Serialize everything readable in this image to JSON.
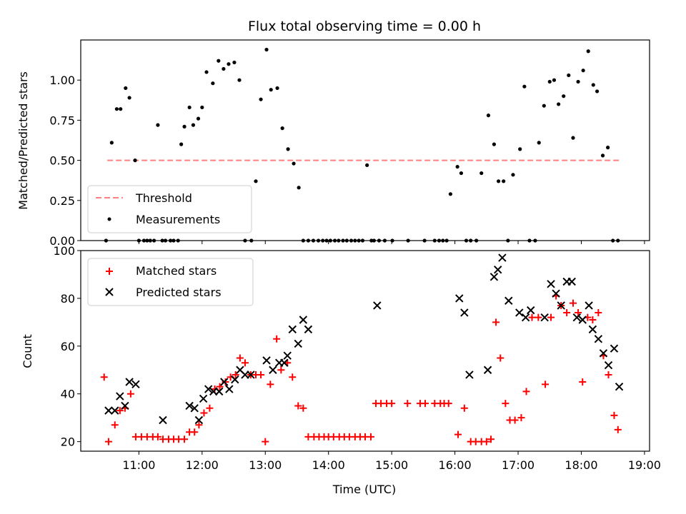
{
  "chart_data": [
    {
      "type": "scatter",
      "title": "Flux total observing time = 0.00 h",
      "xlabel": "",
      "ylabel": "Matched/Predicted stars",
      "xlim": [
        10.08,
        19.08
      ],
      "ylim": [
        0.0,
        1.25
      ],
      "y_ticks": [
        0.0,
        0.25,
        0.5,
        0.75,
        1.0
      ],
      "y_tick_labels": [
        "0.00",
        "0.25",
        "0.50",
        "0.75",
        "1.00"
      ],
      "x_ticks": [
        11,
        12,
        13,
        14,
        15,
        16,
        17,
        18,
        19
      ],
      "x_tick_labels": [],
      "threshold": {
        "y": 0.5,
        "x": [
          10.5,
          18.6
        ],
        "color": "#ff8080"
      },
      "legend": {
        "placement": "lower-left",
        "entries": [
          "Threshold",
          "Measurements"
        ]
      },
      "series": [
        {
          "name": "Measurements",
          "color": "#000000",
          "marker": "dot",
          "x": [
            10.48,
            10.57,
            10.65,
            10.71,
            10.79,
            10.85,
            10.94,
            11.0,
            11.08,
            11.13,
            11.18,
            11.24,
            11.3,
            11.37,
            11.42,
            11.5,
            11.55,
            11.62,
            11.67,
            11.72,
            11.8,
            11.86,
            11.94,
            12.0,
            12.07,
            12.17,
            12.26,
            12.34,
            12.42,
            12.51,
            12.59,
            12.68,
            12.78,
            12.85,
            12.93,
            13.02,
            13.09,
            13.19,
            13.27,
            13.36,
            13.45,
            13.53,
            13.6,
            13.68,
            13.76,
            13.84,
            13.91,
            13.97,
            14.03,
            14.1,
            14.16,
            14.23,
            14.29,
            14.36,
            14.42,
            14.48,
            14.54,
            14.61,
            14.68,
            14.72,
            14.8,
            14.89,
            15.01,
            15.26,
            15.52,
            15.68,
            15.75,
            15.81,
            15.87,
            15.93,
            16.04,
            16.1,
            16.18,
            16.25,
            16.34,
            16.42,
            16.53,
            16.62,
            16.69,
            16.77,
            16.84,
            16.92,
            17.03,
            17.1,
            17.18,
            17.27,
            17.33,
            17.41,
            17.5,
            17.57,
            17.64,
            17.72,
            17.8,
            17.87,
            17.95,
            18.03,
            18.11,
            18.19,
            18.25,
            18.34,
            18.42,
            18.5,
            18.58
          ],
          "y": [
            0.0,
            0.61,
            0.82,
            0.82,
            0.95,
            0.89,
            0.5,
            0.0,
            0.0,
            0.0,
            0.0,
            0.0,
            0.72,
            0.0,
            0.0,
            0.0,
            0.0,
            0.0,
            0.6,
            0.71,
            0.83,
            0.72,
            0.76,
            0.83,
            1.05,
            0.98,
            1.12,
            1.07,
            1.1,
            1.11,
            1.0,
            0.0,
            0.0,
            0.37,
            0.88,
            1.19,
            0.94,
            0.95,
            0.7,
            0.57,
            0.48,
            0.33,
            0.0,
            0.0,
            0.0,
            0.0,
            0.0,
            0.0,
            0.0,
            0.0,
            0.0,
            0.0,
            0.0,
            0.0,
            0.0,
            0.0,
            0.0,
            0.47,
            0.0,
            0.0,
            0.0,
            0.0,
            0.0,
            0.0,
            0.0,
            0.0,
            0.0,
            0.0,
            0.0,
            0.29,
            0.46,
            0.42,
            0.0,
            0.0,
            0.0,
            0.42,
            0.78,
            0.6,
            0.37,
            0.37,
            0.0,
            0.41,
            0.57,
            0.96,
            0.0,
            0.0,
            0.61,
            0.84,
            0.99,
            1.0,
            0.85,
            0.9,
            1.03,
            0.64,
            0.99,
            1.06,
            1.18,
            0.97,
            0.93,
            0.53,
            0.58,
            0.0,
            0.0
          ]
        }
      ]
    },
    {
      "type": "scatter",
      "title": "",
      "xlabel": "Time (UTC)",
      "ylabel": "Count",
      "xlim": [
        10.08,
        19.08
      ],
      "ylim": [
        16,
        100
      ],
      "y_ticks": [
        20,
        40,
        60,
        80,
        100
      ],
      "y_tick_labels": [
        "20",
        "40",
        "60",
        "80",
        "100"
      ],
      "x_ticks": [
        11,
        12,
        13,
        14,
        15,
        16,
        17,
        18,
        19
      ],
      "x_tick_labels": [
        "11:00",
        "12:00",
        "13:00",
        "14:00",
        "15:00",
        "16:00",
        "17:00",
        "18:00",
        "19:00"
      ],
      "legend": {
        "placement": "upper-left",
        "entries": [
          "Matched stars",
          "Predicted stars"
        ]
      },
      "series": [
        {
          "name": "Matched stars",
          "color": "#ff0000",
          "marker": "plus",
          "x": [
            10.45,
            10.52,
            10.62,
            10.7,
            10.78,
            10.87,
            10.95,
            11.04,
            11.13,
            11.22,
            11.3,
            11.38,
            11.47,
            11.55,
            11.63,
            11.72,
            11.8,
            11.88,
            11.95,
            12.03,
            12.12,
            12.2,
            12.28,
            12.37,
            12.45,
            12.53,
            12.6,
            12.68,
            12.77,
            12.85,
            12.93,
            13.0,
            13.08,
            13.18,
            13.25,
            13.35,
            13.43,
            13.52,
            13.6,
            13.68,
            13.77,
            13.85,
            13.93,
            14.0,
            14.08,
            14.17,
            14.25,
            14.33,
            14.42,
            14.5,
            14.58,
            14.67,
            14.75,
            14.83,
            14.92,
            15.0,
            15.25,
            15.45,
            15.53,
            15.68,
            15.77,
            15.83,
            15.9,
            16.05,
            16.15,
            16.25,
            16.33,
            16.42,
            16.5,
            16.57,
            16.65,
            16.72,
            16.8,
            16.87,
            16.95,
            17.05,
            17.13,
            17.22,
            17.32,
            17.43,
            17.52,
            17.6,
            17.68,
            17.77,
            17.87,
            17.95,
            18.02,
            18.1,
            18.18,
            18.27,
            18.35,
            18.43,
            18.52,
            18.58
          ],
          "y": [
            47,
            20,
            27,
            33,
            34,
            40,
            22,
            22,
            22,
            22,
            22,
            21,
            21,
            21,
            21,
            21,
            24,
            24,
            27,
            32,
            34,
            42,
            43,
            45,
            47,
            48,
            55,
            53,
            48,
            48,
            48,
            20,
            44,
            63,
            50,
            53,
            47,
            35,
            34,
            22,
            22,
            22,
            22,
            22,
            22,
            22,
            22,
            22,
            22,
            22,
            22,
            22,
            36,
            36,
            36,
            36,
            36,
            36,
            36,
            36,
            36,
            36,
            36,
            23,
            34,
            20,
            20,
            20,
            20,
            21,
            70,
            55,
            36,
            29,
            29,
            30,
            41,
            72,
            72,
            44,
            72,
            81,
            77,
            74,
            78,
            74,
            45,
            72,
            71,
            74,
            56,
            48,
            31,
            25
          ]
        },
        {
          "name": "Predicted stars",
          "color": "#000000",
          "marker": "x",
          "x": [
            10.52,
            10.62,
            10.7,
            10.78,
            10.85,
            10.95,
            11.38,
            11.8,
            11.88,
            11.95,
            12.02,
            12.1,
            12.18,
            12.27,
            12.35,
            12.43,
            12.52,
            12.6,
            12.68,
            12.77,
            13.02,
            13.12,
            13.22,
            13.3,
            13.35,
            13.43,
            13.52,
            13.6,
            13.68,
            14.77,
            16.07,
            16.15,
            16.23,
            16.52,
            16.62,
            16.68,
            16.75,
            16.85,
            17.02,
            17.12,
            17.2,
            17.42,
            17.52,
            17.6,
            17.68,
            17.77,
            17.85,
            17.93,
            18.02,
            18.12,
            18.18,
            18.27,
            18.35,
            18.43,
            18.52,
            18.6
          ],
          "y": [
            33,
            33,
            39,
            35,
            45,
            44,
            29,
            35,
            34,
            29,
            38,
            42,
            41,
            41,
            45,
            42,
            46,
            50,
            48,
            48,
            54,
            50,
            53,
            53,
            56,
            67,
            61,
            71,
            67,
            77,
            80,
            74,
            48,
            50,
            89,
            92,
            97,
            79,
            74,
            72,
            75,
            72,
            86,
            82,
            77,
            87,
            87,
            72,
            71,
            77,
            67,
            63,
            57,
            52,
            59,
            43
          ]
        }
      ]
    }
  ]
}
